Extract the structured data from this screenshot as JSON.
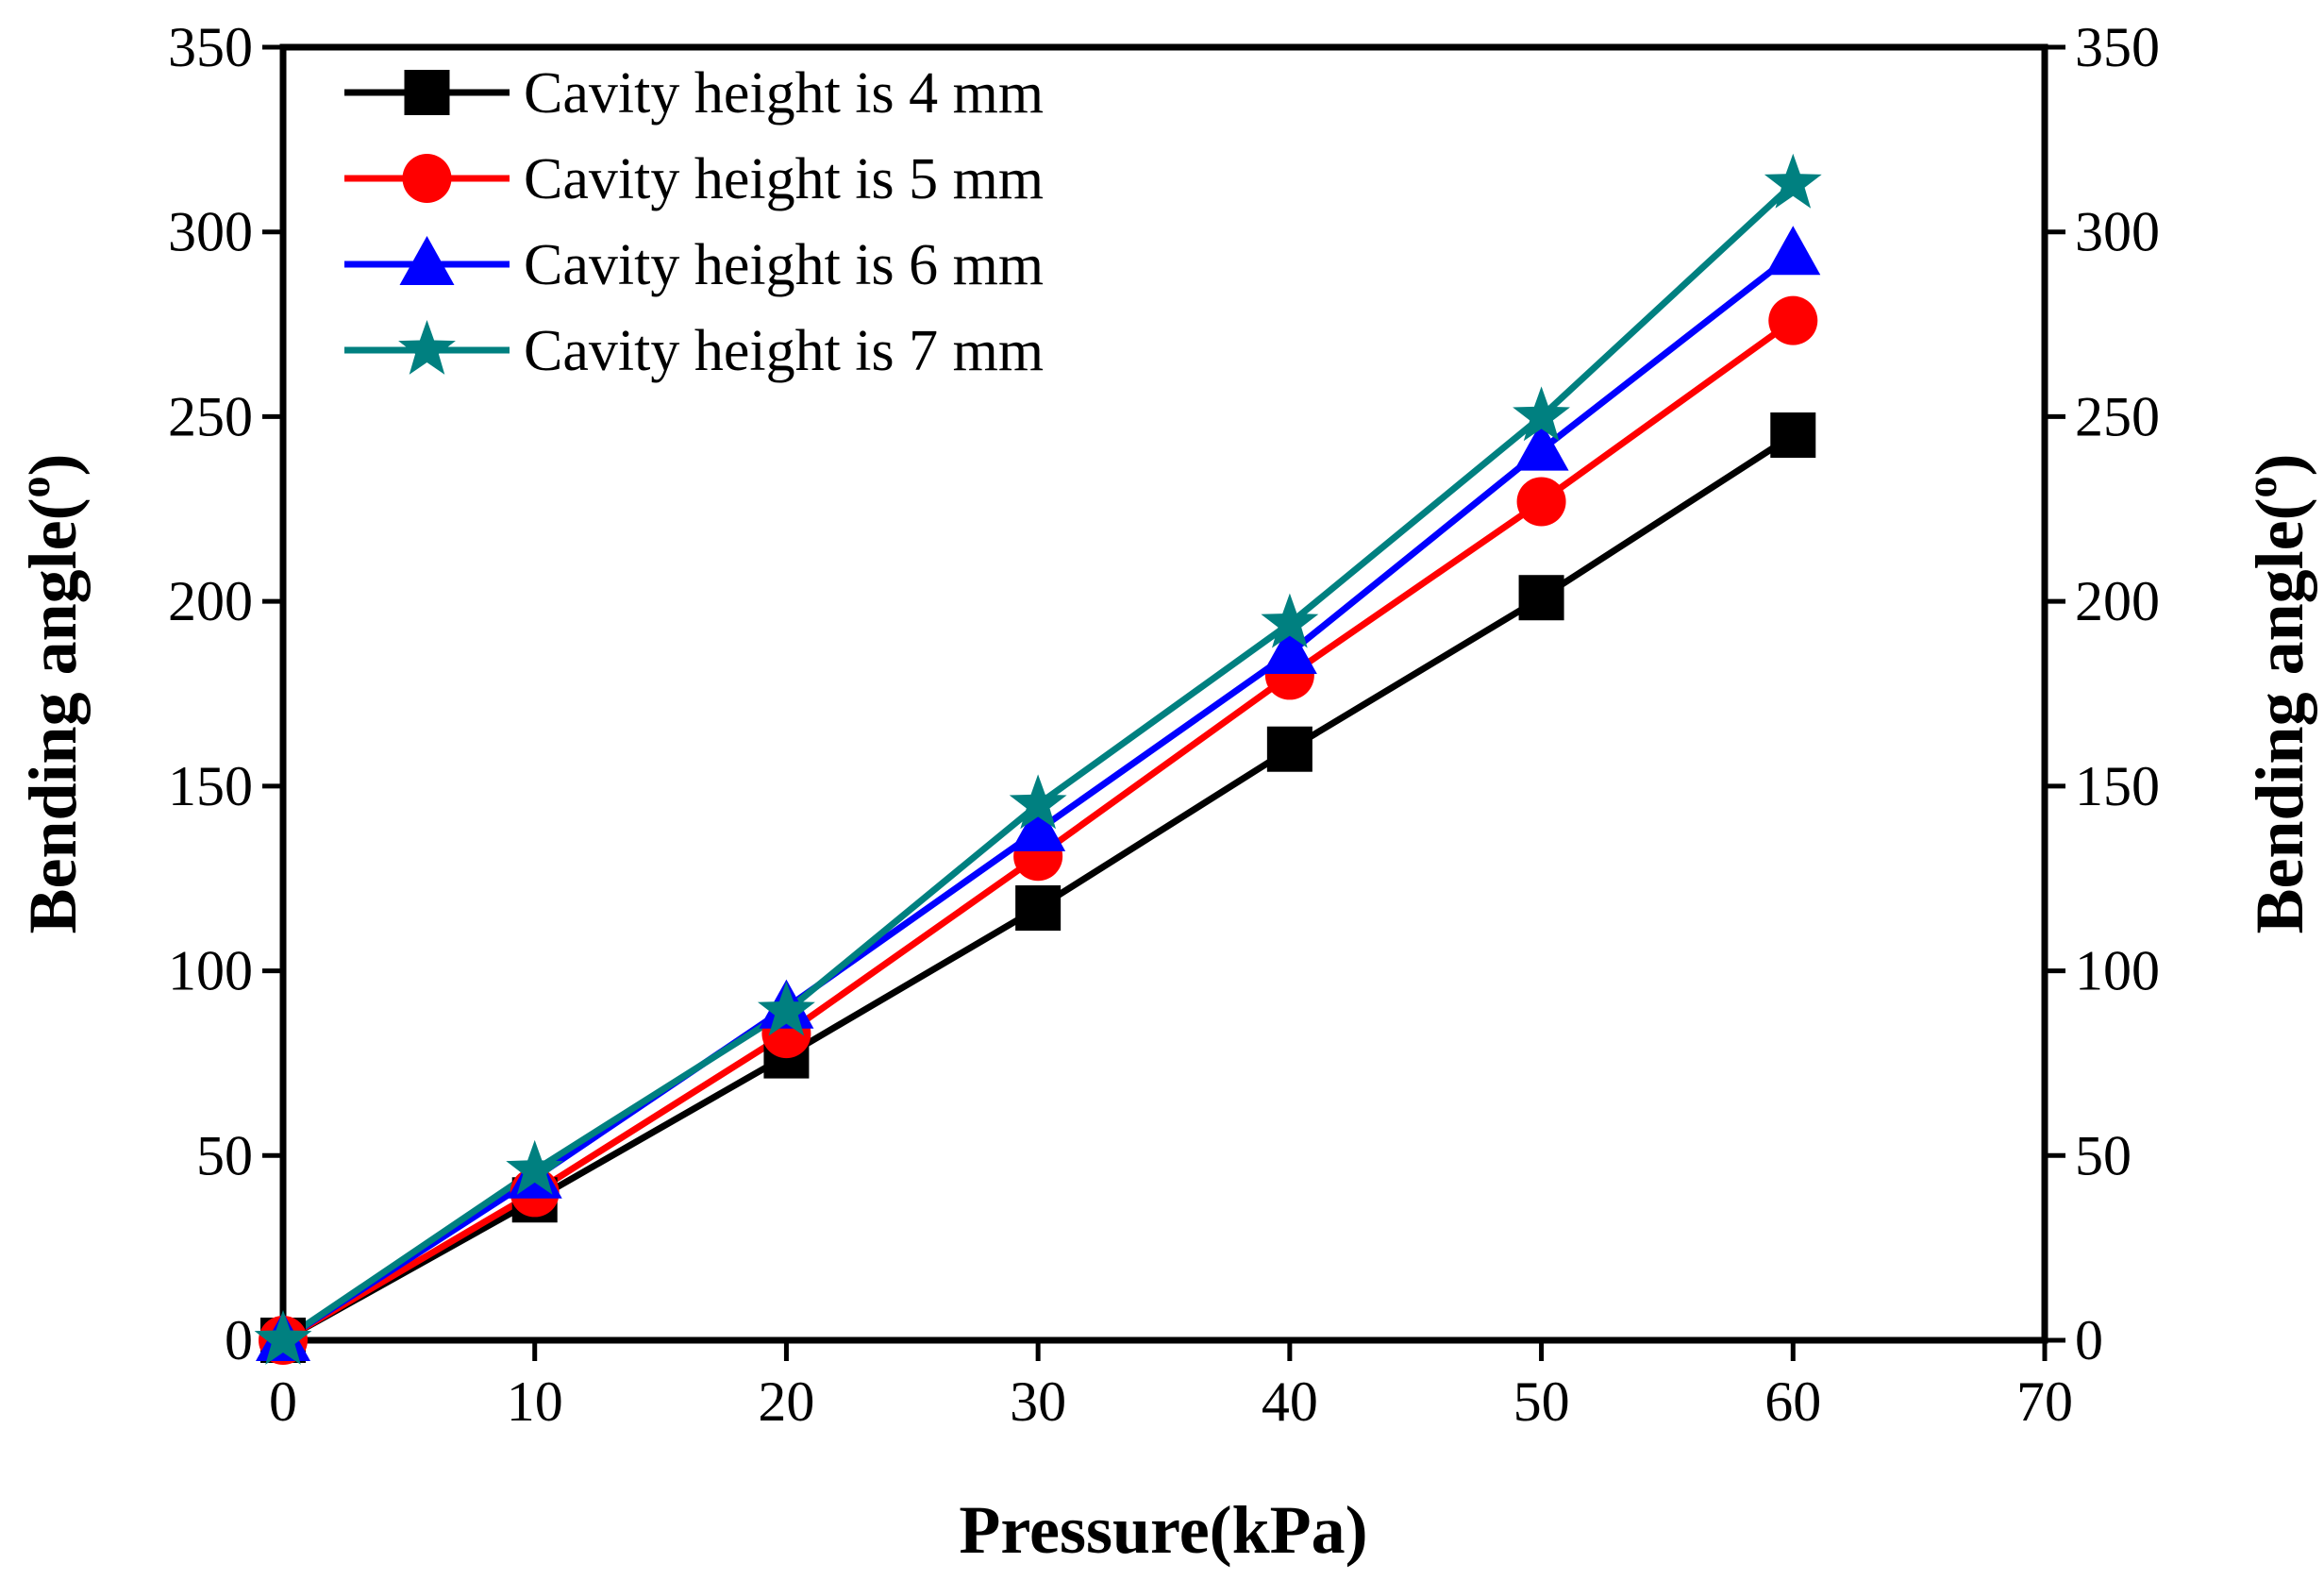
{
  "chart_data": {
    "type": "line",
    "xlabel": "Pressure(kPa)",
    "ylabel": "Bending angle(",
    "ylabel_sup": "o",
    "ylabel_close": ")",
    "y2label": "Bending angle(",
    "y2label_sup": "o",
    "y2label_close": ")",
    "xlim": [
      0,
      70
    ],
    "ylim": [
      0,
      350
    ],
    "xticks": [
      0,
      10,
      20,
      30,
      40,
      50,
      60,
      70
    ],
    "yticks": [
      0,
      50,
      100,
      150,
      200,
      250,
      300,
      350
    ],
    "legend_position": "top-left",
    "series": [
      {
        "name": "Cavity height is 4 mm",
        "color": "#000000",
        "marker": "square",
        "x": [
          0,
          10,
          20,
          30,
          40,
          50,
          60
        ],
        "y": [
          0,
          38,
          77,
          117,
          160,
          201,
          245
        ]
      },
      {
        "name": "Cavity height is 5 mm",
        "color": "#ff0000",
        "marker": "circle",
        "x": [
          0,
          10,
          20,
          30,
          40,
          50,
          60
        ],
        "y": [
          0,
          40,
          83,
          131,
          180,
          227,
          276
        ]
      },
      {
        "name": "Cavity height is 6 mm",
        "color": "#0000ff",
        "marker": "triangle",
        "x": [
          0,
          10,
          20,
          30,
          40,
          50,
          60
        ],
        "y": [
          0,
          44,
          90,
          138,
          186,
          241,
          294
        ]
      },
      {
        "name": "Cavity height is 7 mm",
        "color": "#008080",
        "marker": "star",
        "x": [
          0,
          10,
          20,
          30,
          40,
          50,
          60
        ],
        "y": [
          0,
          46,
          89,
          145,
          194,
          250,
          313
        ]
      }
    ]
  }
}
